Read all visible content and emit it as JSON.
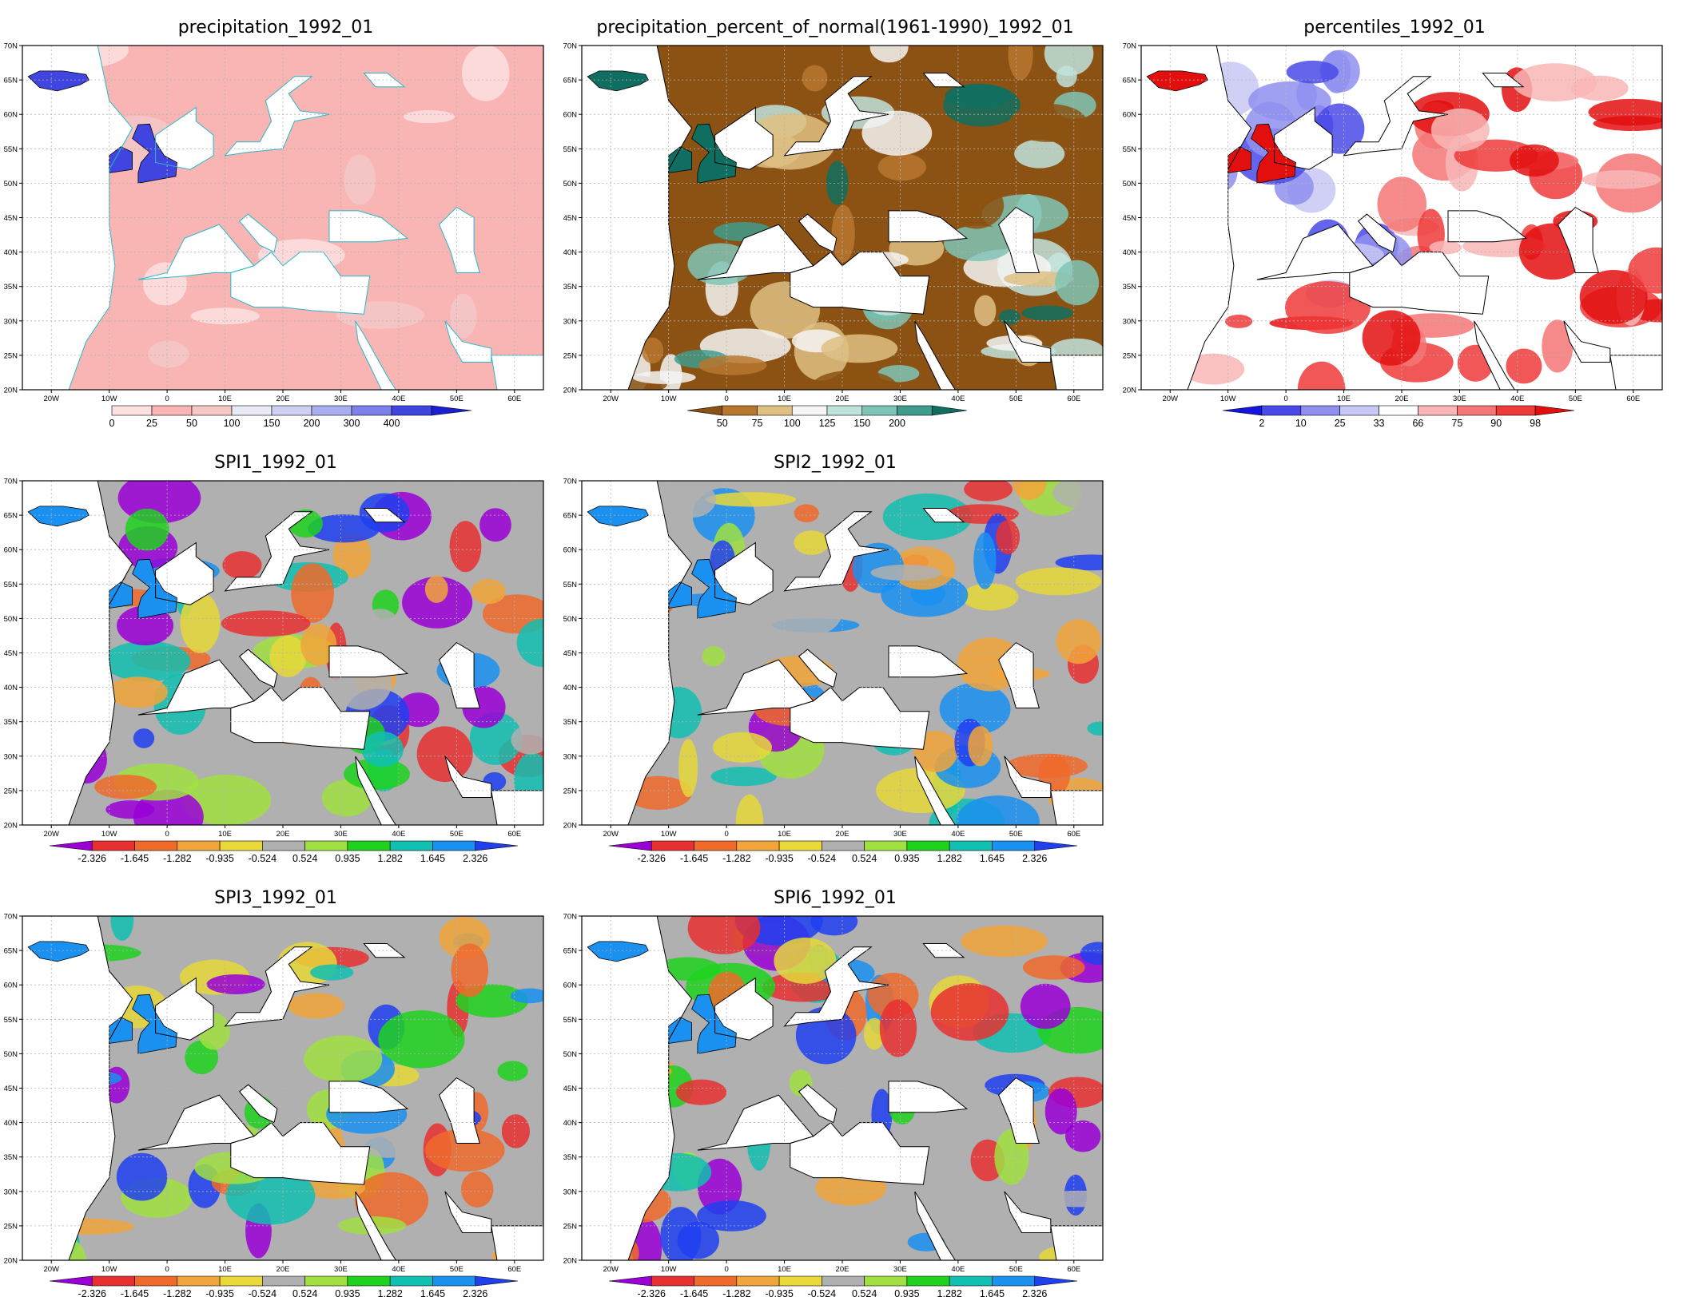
{
  "lon_ticks": [
    "20W",
    "10W",
    "0",
    "10E",
    "20E",
    "30E",
    "40E",
    "50E",
    "60E"
  ],
  "lat_ticks": [
    "20N",
    "25N",
    "30N",
    "35N",
    "40N",
    "45N",
    "50N",
    "55N",
    "60N",
    "65N",
    "70N"
  ],
  "palettes": {
    "precip": [
      "#ffffff",
      "#fde1e1",
      "#f9b4b4",
      "#f5c7c7",
      "#eaeaf7",
      "#cdd0f3",
      "#a9aeee",
      "#7b80ea",
      "#4045e0",
      "#1a1fd0"
    ],
    "pct": [
      "#8b5213",
      "#b8772f",
      "#dfc083",
      "#f5f5f5",
      "#bfe3dc",
      "#7fc4b6",
      "#3f9c8d",
      "#0f6e60"
    ],
    "perc": [
      "#1515e0",
      "#4a4ae8",
      "#8f8ff0",
      "#c8c8f6",
      "#ffffff",
      "#f9b6b6",
      "#f57676",
      "#ef3a3a",
      "#e30f0f"
    ],
    "spi": [
      "#9a00d6",
      "#e83030",
      "#f06a2a",
      "#f2a53a",
      "#e8d83a",
      "#b0b0b0",
      "#a0e040",
      "#1ed21e",
      "#10c0b0",
      "#1a90f0",
      "#2040f0"
    ]
  },
  "panels": [
    {
      "title": "precipitation_1992_01",
      "palette": "precip",
      "colorbar_labels": [
        "0",
        "25",
        "50",
        "100",
        "150",
        "200",
        "300",
        "400"
      ],
      "colorbar_has_left_arrow": false
    },
    {
      "title": "precipitation_percent_of_normal(1961-1990)_1992_01",
      "palette": "pct",
      "colorbar_labels": [
        "50",
        "75",
        "100",
        "125",
        "150",
        "200"
      ],
      "colorbar_has_left_arrow": true
    },
    {
      "title": "percentiles_1992_01",
      "palette": "perc",
      "colorbar_labels": [
        "2",
        "10",
        "25",
        "33",
        "66",
        "75",
        "90",
        "98"
      ],
      "colorbar_has_left_arrow": true
    },
    {
      "title": "SPI1_1992_01",
      "palette": "spi",
      "colorbar_labels": [
        "-2.326",
        "-1.645",
        "-1.282",
        "-0.935",
        "-0.524",
        "0.524",
        "0.935",
        "1.282",
        "1.645",
        "2.326"
      ],
      "colorbar_has_left_arrow": true
    },
    {
      "title": "SPI2_1992_01",
      "palette": "spi",
      "colorbar_labels": [
        "-2.326",
        "-1.645",
        "-1.282",
        "-0.935",
        "-0.524",
        "0.524",
        "0.935",
        "1.282",
        "1.645",
        "2.326"
      ],
      "colorbar_has_left_arrow": true
    },
    {
      "title": "SPI3_1992_01",
      "palette": "spi",
      "colorbar_labels": [
        "-2.326",
        "-1.645",
        "-1.282",
        "-0.935",
        "-0.524",
        "0.524",
        "0.935",
        "1.282",
        "1.645",
        "2.326"
      ],
      "colorbar_has_left_arrow": true
    },
    {
      "title": "SPI6_1992_01",
      "palette": "spi",
      "colorbar_labels": [
        "-2.326",
        "-1.645",
        "-1.282",
        "-0.935",
        "-0.524",
        "0.524",
        "0.935",
        "1.282",
        "1.645",
        "2.326"
      ],
      "colorbar_has_left_arrow": true
    }
  ]
}
